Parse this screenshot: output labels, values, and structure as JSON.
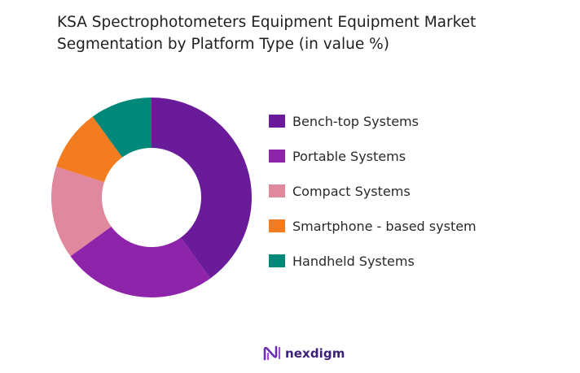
{
  "chart_data": {
    "type": "pie",
    "title_lines": [
      "KSA Spectrophotometers Equipment Equipment Market",
      "Segmentation by Platform Type (in value %)"
    ],
    "donut": true,
    "categories": [
      "Bench-top Systems",
      "Portable Systems",
      "Compact Systems",
      "Smartphone - based system",
      "Handheld Systems"
    ],
    "values": [
      40,
      25,
      15,
      10,
      10
    ],
    "colors": [
      "#6a1b9a",
      "#8e24aa",
      "#e0889e",
      "#f47c20",
      "#00897b"
    ],
    "legend_position": "right"
  },
  "brand": {
    "name": "nexdigm",
    "logo_icon": "nexdigm-logo-icon",
    "color": "#3b1f78"
  }
}
